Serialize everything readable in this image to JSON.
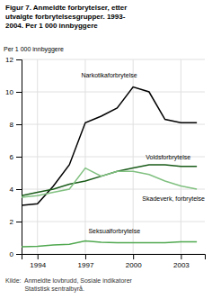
{
  "chart_data": {
    "type": "line",
    "title": "Figur 7. Anmeldte forbrytelser, etter\nutvalgte forbrytelsesgrupper. 1993-\n2004. Per 1 000 innbyggere",
    "y_label": "Per 1 000 innbyggere",
    "annotations": [
      "Kilde:  Anmeldte lovbrudd, Sosiale indikatorer",
      "           Statistisk sentralbyrå."
    ],
    "x": [
      1993,
      1994,
      1995,
      1996,
      1997,
      1998,
      1999,
      2000,
      2001,
      2002,
      2003,
      2004
    ],
    "series": [
      {
        "name": "Narkotikaforbrytelse",
        "color": "#000000",
        "values": [
          3.0,
          3.1,
          4.2,
          5.5,
          8.1,
          8.5,
          9.0,
          10.3,
          10.0,
          8.3,
          8.1,
          8.1
        ]
      },
      {
        "name": "Voldsforbrytelse",
        "color": "#1a5c1a",
        "values": [
          3.6,
          3.8,
          4.0,
          4.3,
          4.5,
          4.8,
          5.1,
          5.3,
          5.5,
          5.5,
          5.4,
          5.4
        ]
      },
      {
        "name": "Skadeverk, forbrytelse",
        "color": "#80c080",
        "values": [
          3.5,
          3.6,
          3.8,
          4.0,
          5.3,
          4.8,
          5.1,
          5.1,
          4.9,
          4.5,
          4.2,
          4.0
        ]
      },
      {
        "name": "Seksualforbrytelse",
        "color": "#50a850",
        "values": [
          0.45,
          0.47,
          0.55,
          0.6,
          0.8,
          0.72,
          0.7,
          0.7,
          0.7,
          0.7,
          0.75,
          0.75
        ]
      }
    ],
    "xlim": [
      1993,
      2004.5
    ],
    "xticks": [
      1994,
      1997,
      2000,
      2003
    ],
    "ylim": [
      0,
      12
    ],
    "yticks": [
      0,
      2,
      4,
      6,
      8,
      10,
      12
    ],
    "grid": true
  }
}
